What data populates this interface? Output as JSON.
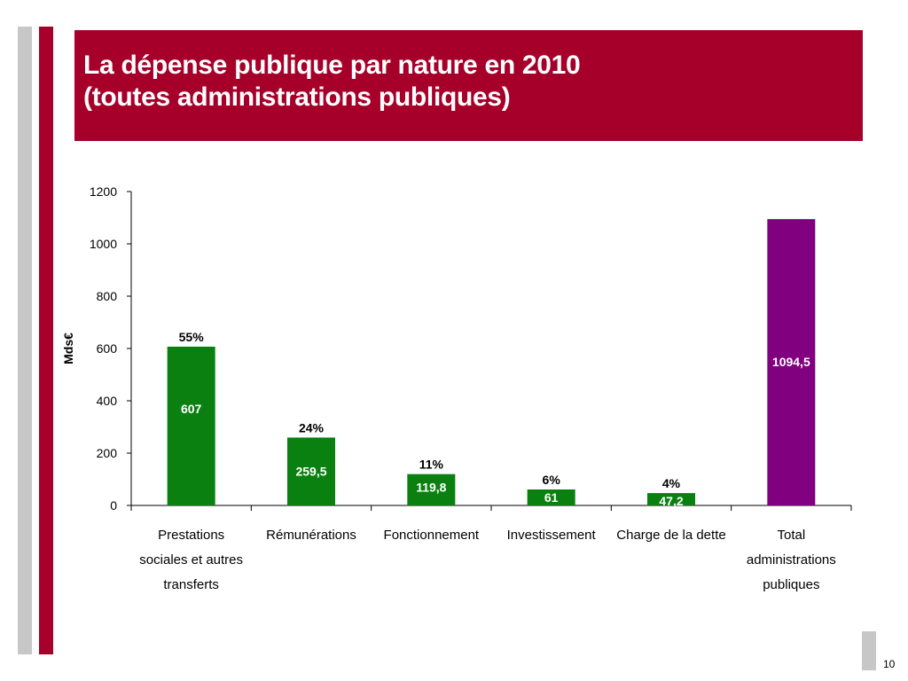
{
  "slide": {
    "title_line1": "La dépense publique par nature en 2010",
    "title_line2": "(toutes administrations publiques)",
    "page_number": "10"
  },
  "colors": {
    "accent_red": "#a6002a",
    "bar_green": "#0a8010",
    "bar_purple": "#80007f"
  },
  "chart_data": {
    "type": "bar",
    "ylabel": "Mds€",
    "ylim": [
      0,
      1200
    ],
    "yticks": [
      0,
      200,
      400,
      600,
      800,
      1000,
      1200
    ],
    "categories": [
      [
        "Prestations",
        "sociales et autres",
        "transferts"
      ],
      [
        "Rémunérations"
      ],
      [
        "Fonctionnement"
      ],
      [
        "Investissement"
      ],
      [
        "Charge de la dette"
      ],
      [
        "Total",
        "administrations",
        "publiques"
      ]
    ],
    "values": [
      607,
      259.5,
      119.8,
      61,
      47.2,
      1094.5
    ],
    "value_labels": [
      "607",
      "259,5",
      "119,8",
      "61",
      "47,2",
      "1094,5"
    ],
    "percent_labels": [
      "55%",
      "24%",
      "11%",
      "6%",
      "4%",
      ""
    ],
    "bar_colors": [
      "#0a8010",
      "#0a8010",
      "#0a8010",
      "#0a8010",
      "#0a8010",
      "#80007f"
    ]
  }
}
